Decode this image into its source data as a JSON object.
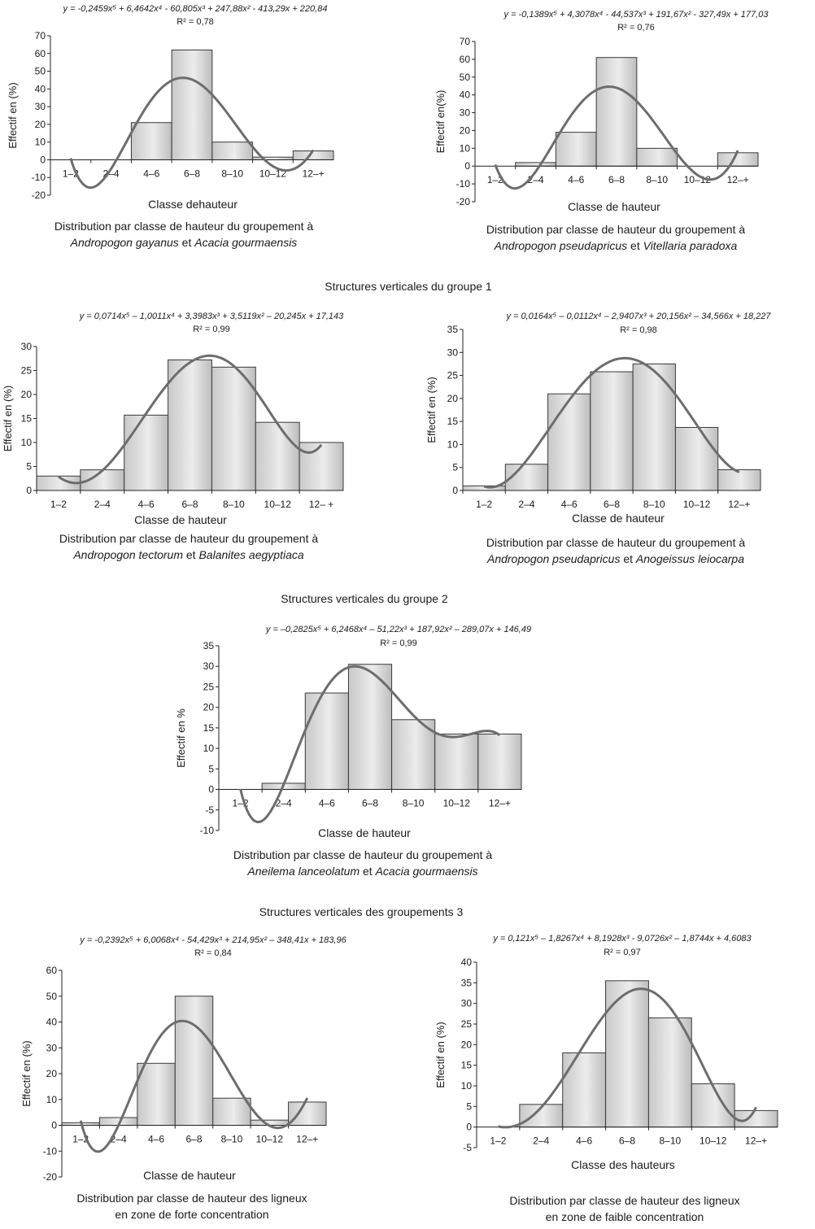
{
  "sections": [
    {
      "title": "Structures verticales du groupe 1"
    },
    {
      "title": "Structures verticales du groupe 2"
    },
    {
      "title": "Structures verticales des groupements 3"
    }
  ],
  "chart_data": [
    {
      "type": "bar",
      "equation": "y = -0,2459x⁵ + 6,4642x⁴ - 60,805x³ + 247,88x² - 413,29x + 220,84",
      "r2": "R² = 0,78",
      "ylabel": "Effectif en (%)",
      "xlabel": "Classe dehauteur",
      "caption": [
        "Distribution par classe de hauteur du groupement à",
        "Andropogon gayanus et Acacia gourmaensis"
      ],
      "caption_italic_words": [
        "Andropogon gayanus",
        "Acacia gourmaensis"
      ],
      "categories": [
        "1–2",
        "2–4",
        "4–6",
        "6–8",
        "8–10",
        "10–12",
        "12–+"
      ],
      "values": [
        0,
        0,
        21,
        62,
        10,
        1.5,
        5
      ],
      "ylim": [
        -20,
        70
      ],
      "yticks": [
        70,
        60,
        50,
        40,
        30,
        20,
        10,
        0,
        -10,
        -20
      ],
      "trend": [
        -0.2459,
        6.4642,
        -60.805,
        247.88,
        -413.29,
        220.84
      ],
      "grid": false
    },
    {
      "type": "bar",
      "equation": "y = -0,1389x⁵ + 4,3078x⁴ - 44,537x³ + 191,67x² - 327,49x + 177,03",
      "r2": "R² = 0,76",
      "ylabel": "Effectif en(%)",
      "xlabel": "Classe de hauteur",
      "caption": [
        "Distribution par classe de hauteur du groupement à",
        "Andropogon pseudapricus et Vitellaria paradoxa"
      ],
      "caption_italic_words": [
        "Andropogon pseudapricus",
        "Vitellaria paradoxa"
      ],
      "categories": [
        "1–2",
        "2–4",
        "4–6",
        "6–8",
        "8–10",
        "10–12",
        "12–+"
      ],
      "values": [
        0,
        2,
        19,
        61,
        10,
        0,
        7.5
      ],
      "ylim": [
        -20,
        70
      ],
      "yticks": [
        70,
        60,
        50,
        40,
        30,
        20,
        10,
        0,
        -10,
        -20
      ],
      "trend": [
        -0.1389,
        4.3078,
        -44.537,
        191.67,
        -327.49,
        177.03
      ],
      "grid": false
    },
    {
      "type": "bar",
      "equation": "y = 0,0714x⁵ – 1,0011x⁴ + 3,3983x³ + 3,5119x² – 20,245x + 17,143",
      "r2": "R² = 0,99",
      "ylabel": "Effectif en (%)",
      "xlabel": "Classe de hauteur",
      "caption": [
        "Distribution par classe de hauteur du groupement à",
        "Andropogon tectorum et Balanites aegyptiaca"
      ],
      "caption_italic_words": [
        "Andropogon tectorum",
        "Balanites aegyptiaca"
      ],
      "categories": [
        "1–2",
        "2–4",
        "4–6",
        "6–8",
        "8–10",
        "10–12",
        "12– +"
      ],
      "values": [
        3,
        4.3,
        15.7,
        27.2,
        25.7,
        14.2,
        10
      ],
      "ylim": [
        0,
        30
      ],
      "yticks": [
        30,
        25,
        20,
        15,
        10,
        5,
        0
      ],
      "trend": [
        0.0714,
        -1.0011,
        3.3983,
        3.5119,
        -20.245,
        17.143
      ],
      "grid": false
    },
    {
      "type": "bar",
      "equation": "y = 0,0164x⁵ – 0,0112x⁴ – 2,9407x³ + 20,156x² – 34,566x + 18,227",
      "r2": "R² = 0,98",
      "ylabel": "Effectif en (%)",
      "xlabel": "Classe de hauteur",
      "caption": [
        "Distribution par classe de hauteur du groupement à",
        "Andropogon pseudapricus et Anogeissus leiocarpa"
      ],
      "caption_italic_words": [
        "Andropogon pseudapricus",
        "Anogeissus leiocarpa"
      ],
      "categories": [
        "1–2",
        "2–4",
        "4–6",
        "6–8",
        "8–10",
        "10–12",
        "12–+"
      ],
      "values": [
        1,
        5.7,
        21,
        25.8,
        27.5,
        13.7,
        4.5
      ],
      "ylim": [
        0,
        35
      ],
      "yticks": [
        35,
        30,
        25,
        20,
        15,
        10,
        5,
        0
      ],
      "trend": [
        0.0164,
        -0.0112,
        -2.9407,
        20.156,
        -34.566,
        18.227
      ],
      "grid": false
    },
    {
      "type": "bar",
      "equation": "y = –0,2825x⁵ + 6,2468x⁴ – 51,22x³ + 187,92x² – 289,07x + 146,49",
      "r2": "R² = 0,99",
      "ylabel": "Effectif en %",
      "xlabel": "Classe de hauteur",
      "caption": [
        "Distribution par classe de hauteur du groupement à",
        "Aneilema lanceolatum et Acacia gourmaensis"
      ],
      "caption_italic_words": [
        "Aneilema lanceolatum",
        "Acacia gourmaensis"
      ],
      "categories": [
        "1–2",
        "2–4",
        "4–6",
        "6–8",
        "8–10",
        "10–12",
        "12–+"
      ],
      "values": [
        0,
        1.5,
        23.5,
        30.5,
        17,
        13.5,
        13.5
      ],
      "ylim": [
        -10,
        35
      ],
      "yticks": [
        35,
        30,
        25,
        20,
        15,
        10,
        5,
        0,
        -5,
        -10
      ],
      "trend": [
        -0.2825,
        6.2468,
        -51.22,
        187.92,
        -289.07,
        146.49
      ],
      "grid": false
    },
    {
      "type": "bar",
      "equation": "y = -0,2392x⁵ + 6,0068x⁴ - 54,429x³ + 214,95x² – 348,41x + 183,96",
      "r2": "R² = 0,84",
      "ylabel": "Effectif en (%)",
      "xlabel": "Classe de hauteur",
      "caption": [
        "Distribution par classe de hauteur des ligneux",
        "en zone de forte concentration"
      ],
      "caption_italic_words": [],
      "categories": [
        "1–2",
        "2–4",
        "4–6",
        "6–8",
        "8–10",
        "10–12",
        "12–+"
      ],
      "values": [
        1,
        3,
        24,
        50,
        10.5,
        2,
        9
      ],
      "ylim": [
        -20,
        60
      ],
      "yticks": [
        60,
        50,
        40,
        30,
        20,
        10,
        0,
        -10,
        -20
      ],
      "trend": [
        -0.2392,
        6.0068,
        -54.429,
        214.95,
        -348.41,
        183.96
      ],
      "grid": false
    },
    {
      "type": "bar",
      "equation": "y = 0,121x⁵ – 1,8267x⁴ + 8,1928x³ - 9,0726x² – 1,8744x + 4,6083",
      "r2": "R² = 0,97",
      "ylabel": "Effectif en (%)",
      "xlabel": "Classe des hauteurs",
      "caption": [
        "Distribution par classe de hauteur des ligneux",
        "en zone de faible concentration"
      ],
      "caption_italic_words": [],
      "categories": [
        "1–2",
        "2–4",
        "4–6",
        "6–8",
        "8–10",
        "10–12",
        "12–+"
      ],
      "values": [
        0,
        5.5,
        18,
        35.5,
        26.5,
        10.5,
        4
      ],
      "ylim": [
        -5,
        40
      ],
      "yticks": [
        40,
        35,
        30,
        25,
        20,
        15,
        10,
        5,
        0,
        -5
      ],
      "trend": [
        0.121,
        -1.8267,
        8.1928,
        -9.0726,
        -1.8744,
        4.6083
      ],
      "grid": false
    }
  ]
}
